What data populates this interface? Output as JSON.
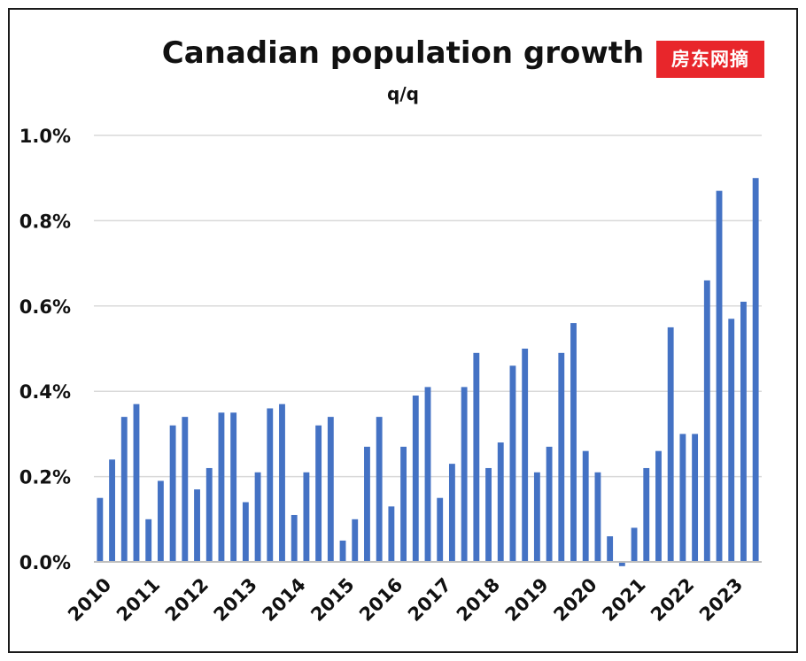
{
  "chart_data": {
    "type": "bar",
    "title": "Canadian population growth",
    "subtitle": "q/q",
    "xlabel": "",
    "ylabel": "",
    "ylim": [
      0,
      1.0
    ],
    "yticks": [
      "0.0%",
      "0.2%",
      "0.4%",
      "0.6%",
      "0.8%",
      "1.0%"
    ],
    "ytick_values": [
      0,
      0.2,
      0.4,
      0.6,
      0.8,
      1.0
    ],
    "xtick_labels": [
      "2010",
      "2011",
      "2012",
      "2013",
      "2014",
      "2015",
      "2016",
      "2017",
      "2018",
      "2019",
      "2020",
      "2021",
      "2022",
      "2023"
    ],
    "categories": [
      "2010 Q1",
      "2010 Q2",
      "2010 Q3",
      "2010 Q4",
      "2011 Q1",
      "2011 Q2",
      "2011 Q3",
      "2011 Q4",
      "2012 Q1",
      "2012 Q2",
      "2012 Q3",
      "2012 Q4",
      "2013 Q1",
      "2013 Q2",
      "2013 Q3",
      "2013 Q4",
      "2014 Q1",
      "2014 Q2",
      "2014 Q3",
      "2014 Q4",
      "2015 Q1",
      "2015 Q2",
      "2015 Q3",
      "2015 Q4",
      "2016 Q1",
      "2016 Q2",
      "2016 Q3",
      "2016 Q4",
      "2017 Q1",
      "2017 Q2",
      "2017 Q3",
      "2017 Q4",
      "2018 Q1",
      "2018 Q2",
      "2018 Q3",
      "2018 Q4",
      "2019 Q1",
      "2019 Q2",
      "2019 Q3",
      "2019 Q4",
      "2020 Q1",
      "2020 Q2",
      "2020 Q3",
      "2020 Q4",
      "2021 Q1",
      "2021 Q2",
      "2021 Q3",
      "2021 Q4",
      "2022 Q1",
      "2022 Q2",
      "2022 Q3",
      "2022 Q4",
      "2023 Q1",
      "2023 Q2",
      "2023 Q3"
    ],
    "values": [
      0.15,
      0.24,
      0.34,
      0.37,
      0.1,
      0.19,
      0.32,
      0.34,
      0.17,
      0.22,
      0.35,
      0.35,
      0.14,
      0.21,
      0.36,
      0.37,
      0.11,
      0.21,
      0.32,
      0.34,
      0.05,
      0.1,
      0.27,
      0.34,
      0.13,
      0.27,
      0.39,
      0.41,
      0.15,
      0.23,
      0.41,
      0.49,
      0.22,
      0.28,
      0.46,
      0.5,
      0.21,
      0.27,
      0.49,
      0.56,
      0.26,
      0.21,
      0.06,
      -0.01,
      0.08,
      0.22,
      0.26,
      0.55,
      0.3,
      0.3,
      0.66,
      0.87,
      0.57,
      0.61,
      0.9
    ],
    "grid": true,
    "legend": "none",
    "colors": {
      "bar": "#4472c4",
      "grid": "#d9d9d9",
      "axis": "#bfbfbf",
      "text": "#111111"
    }
  },
  "watermark": {
    "text": "房东网摘",
    "color": "#e8262b"
  }
}
